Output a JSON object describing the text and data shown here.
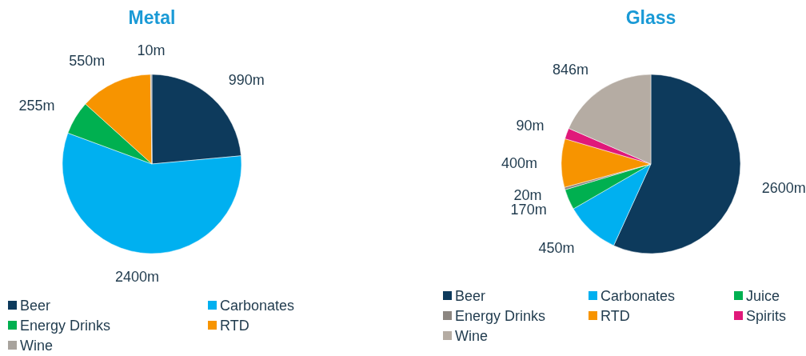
{
  "chart_data": [
    {
      "type": "pie",
      "title": "Metal",
      "categories": [
        "Beer",
        "Carbonates",
        "Energy Drinks",
        "RTD",
        "Wine"
      ],
      "values": [
        990,
        2400,
        255,
        550,
        10
      ],
      "value_labels": [
        "990m",
        "2400m",
        "255m",
        "550m",
        "10m"
      ],
      "colors": [
        "#0d3a5c",
        "#00b0f0",
        "#00b050",
        "#f79400",
        "#a8a39d"
      ],
      "legend": "bottom"
    },
    {
      "type": "pie",
      "title": "Glass",
      "categories": [
        "Beer",
        "Carbonates",
        "Juice",
        "Energy Drinks",
        "RTD",
        "Spirits",
        "Wine"
      ],
      "values": [
        2600,
        450,
        170,
        20,
        400,
        90,
        846
      ],
      "value_labels": [
        "2600m",
        "450m",
        "170m",
        "20m",
        "400m",
        "90m",
        "846m"
      ],
      "colors": [
        "#0d3a5c",
        "#00b0f0",
        "#00b050",
        "#8c8681",
        "#f79400",
        "#e0197a",
        "#b5aca3"
      ],
      "legend": "bottom"
    }
  ]
}
